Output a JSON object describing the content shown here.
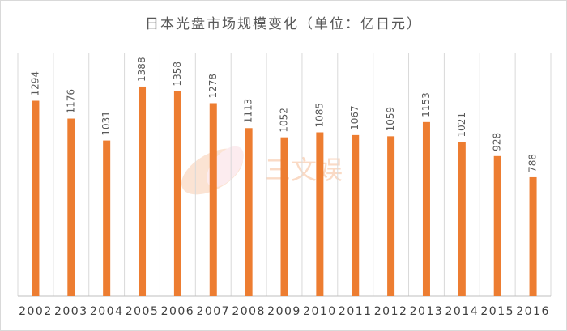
{
  "chart_data": {
    "type": "bar",
    "title": "日本光盘市场规模变化（单位：亿日元）",
    "watermark": "三文娱",
    "categories": [
      "2002",
      "2003",
      "2004",
      "2005",
      "2006",
      "2007",
      "2008",
      "2009",
      "2010",
      "2011",
      "2012",
      "2013",
      "2014",
      "2015",
      "2016"
    ],
    "values": [
      1294,
      1176,
      1031,
      1388,
      1358,
      1278,
      1113,
      1052,
      1085,
      1067,
      1059,
      1153,
      1021,
      928,
      788
    ],
    "color": "#ed7d31",
    "ylim": [
      0,
      1720
    ],
    "grid": true
  }
}
